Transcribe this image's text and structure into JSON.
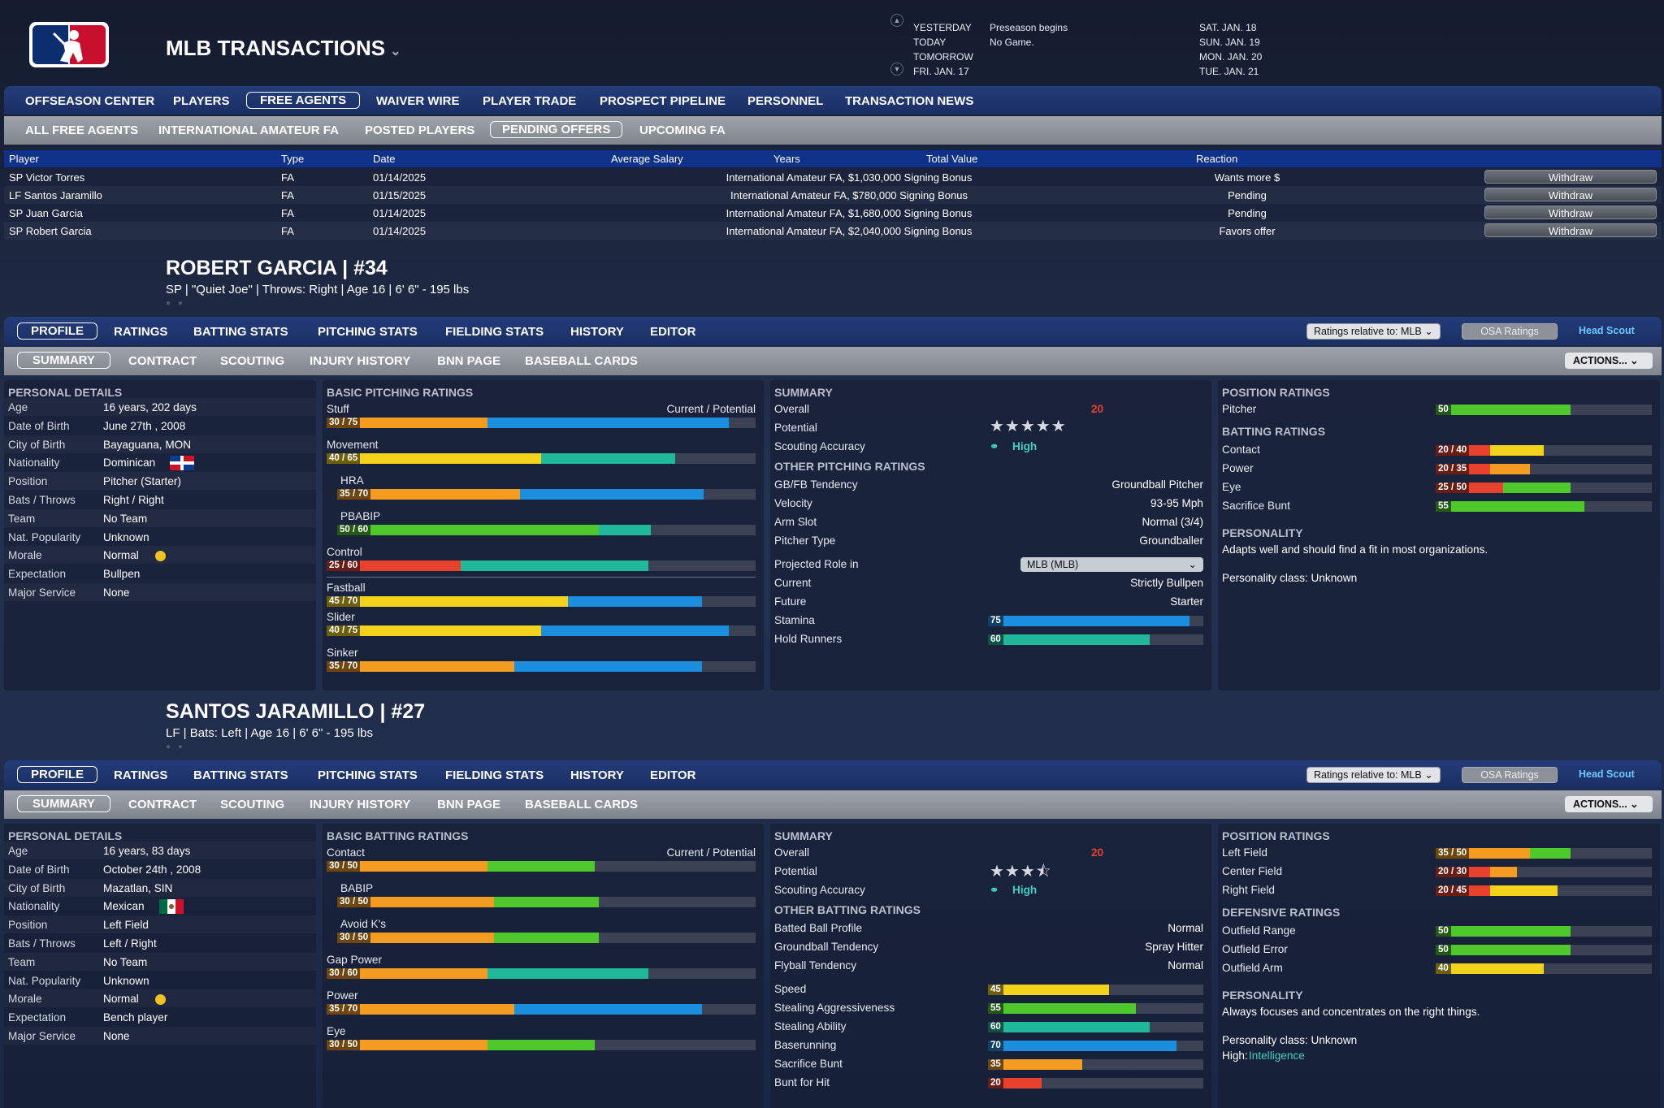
{
  "app": {
    "title": "MLB TRANSACTIONS"
  },
  "calendar": {
    "rows": [
      {
        "label": "YESTERDAY",
        "event": "Preseason begins",
        "date": "SAT. JAN. 18"
      },
      {
        "label": "TODAY",
        "event": "No Game.",
        "date": "SUN. JAN. 19"
      },
      {
        "label": "TOMORROW",
        "event": "",
        "date": "MON. JAN. 20"
      },
      {
        "label": "FRI. JAN. 17",
        "event": "",
        "date": "TUE. JAN. 21"
      }
    ]
  },
  "nav": [
    "OFFSEASON CENTER",
    "PLAYERS",
    "FREE AGENTS",
    "WAIVER WIRE",
    "PLAYER TRADE",
    "PROSPECT PIPELINE",
    "PERSONNEL",
    "TRANSACTION NEWS"
  ],
  "subnav": [
    "ALL FREE AGENTS",
    "INTERNATIONAL AMATEUR FA",
    "POSTED PLAYERS",
    "PENDING OFFERS",
    "UPCOMING FA"
  ],
  "offers": {
    "headers": [
      "Player",
      "Type",
      "Date",
      "Average Salary",
      "Years",
      "Total Value",
      "Reaction"
    ],
    "rows": [
      {
        "player": "SP Victor Torres",
        "type": "FA",
        "date": "01/14/2025",
        "value": "International Amateur FA, $1,030,000 Signing Bonus",
        "reaction": "Wants more $",
        "action": "Withdraw"
      },
      {
        "player": "LF Santos Jaramillo",
        "type": "FA",
        "date": "01/15/2025",
        "value": "International Amateur FA, $780,000 Signing Bonus",
        "reaction": "Pending",
        "action": "Withdraw"
      },
      {
        "player": "SP Juan Garcia",
        "type": "FA",
        "date": "01/14/2025",
        "value": "International Amateur FA, $1,680,000 Signing Bonus",
        "reaction": "Pending",
        "action": "Withdraw"
      },
      {
        "player": "SP Robert Garcia",
        "type": "FA",
        "date": "01/14/2025",
        "value": "International Amateur FA, $2,040,000 Signing Bonus",
        "reaction": "Favors offer",
        "action": "Withdraw"
      }
    ]
  },
  "player_tabs": [
    "PROFILE",
    "RATINGS",
    "BATTING STATS",
    "PITCHING STATS",
    "FIELDING STATS",
    "HISTORY",
    "EDITOR"
  ],
  "player_subtabs": [
    "SUMMARY",
    "CONTRACT",
    "SCOUTING",
    "INJURY HISTORY",
    "BNN PAGE",
    "BASEBALL CARDS"
  ],
  "ratings_relative": "Ratings relative to: MLB",
  "osa_label": "OSA Ratings",
  "scout_label": "Head Scout",
  "actions_label": "ACTIONS...",
  "headings": {
    "personal": "PERSONAL DETAILS",
    "basic_pitching": "BASIC PITCHING RATINGS",
    "basic_batting": "BASIC BATTING RATINGS",
    "summary": "SUMMARY",
    "other_pitching": "OTHER PITCHING RATINGS",
    "other_batting": "OTHER BATTING RATINGS",
    "position": "POSITION RATINGS",
    "batting": "BATTING RATINGS",
    "defensive": "DEFENSIVE RATINGS",
    "personality": "PERSONALITY",
    "cur_pot": "Current / Potential",
    "overall": "Overall",
    "potential": "Potential",
    "scouting_accuracy": "Scouting Accuracy"
  },
  "detail_labels": [
    "Age",
    "Date of Birth",
    "City of Birth",
    "Nationality",
    "Position",
    "Bats / Throws",
    "Team",
    "Nat. Popularity",
    "Morale",
    "Expectation",
    "Major Service"
  ],
  "colors": {
    "red": "#e8422f",
    "orange": "#f39c1f",
    "yellow": "#f2d21b",
    "green": "#4ec82a",
    "teal": "#1fb89a",
    "blue": "#1c8ee0",
    "empty": "#3a4254"
  },
  "p1": {
    "name": "ROBERT GARCIA  |  #34",
    "sub": "SP | \"Quiet Joe\" | Throws: Right  |  Age 16  |  6' 6\" - 195 lbs",
    "details": [
      "16 years, 202 days",
      "June 27th , 2008",
      "Bayaguana, MON",
      "Dominican",
      "Pitcher (Starter)",
      "Right / Right",
      "No Team",
      "Unknown",
      "Normal",
      "Bullpen",
      "None"
    ],
    "flag": "dominican-flag",
    "basic": [
      {
        "label": "Stuff",
        "cur": 30,
        "pot": 75,
        "text": "30 / 75"
      },
      {
        "label": "Movement",
        "cur": 40,
        "pot": 65,
        "text": "40 / 65"
      },
      {
        "label": "HRA",
        "cur": 35,
        "pot": 70,
        "text": "35 / 70",
        "indent": true
      },
      {
        "label": "PBABIP",
        "cur": 50,
        "pot": 60,
        "text": "50 / 60",
        "indent": true
      },
      {
        "label": "Control",
        "cur": 25,
        "pot": 60,
        "text": "25 / 60"
      },
      {
        "label": "Fastball",
        "cur": 45,
        "pot": 70,
        "text": "45 / 70",
        "sep": true
      },
      {
        "label": "Slider",
        "cur": 40,
        "pot": 75,
        "text": "40 / 75"
      },
      {
        "label": "Sinker",
        "cur": 35,
        "pot": 70,
        "text": "35 / 70"
      }
    ],
    "overall": "20",
    "stars": 5,
    "accuracy": "High",
    "other": [
      {
        "label": "GB/FB Tendency",
        "value": "Groundball Pitcher"
      },
      {
        "label": "Velocity",
        "value": "93-95 Mph"
      },
      {
        "label": "Arm Slot",
        "value": "Normal (3/4)"
      },
      {
        "label": "Pitcher Type",
        "value": "Groundballer"
      }
    ],
    "projected_role_label": "Projected Role in",
    "projected_role": "MLB (MLB)",
    "roles": [
      {
        "label": "Current",
        "value": "Strictly Bullpen"
      },
      {
        "label": "Future",
        "value": "Starter"
      }
    ],
    "small_bars": [
      {
        "label": "Stamina",
        "v": 75
      },
      {
        "label": "Hold Runners",
        "v": 60
      }
    ],
    "position": [
      {
        "label": "Pitcher",
        "cur": 50,
        "pot": 50,
        "text": "50"
      }
    ],
    "batting": [
      {
        "label": "Contact",
        "cur": 20,
        "pot": 40,
        "text": "20 / 40"
      },
      {
        "label": "Power",
        "cur": 20,
        "pot": 35,
        "text": "20 / 35"
      },
      {
        "label": "Eye",
        "cur": 25,
        "pot": 50,
        "text": "25 / 50"
      },
      {
        "label": "Sacrifice Bunt",
        "cur": 55,
        "pot": 55,
        "text": "55"
      }
    ],
    "personality": "Adapts well and should find a fit in most organizations.",
    "personality_class": "Personality class: Unknown"
  },
  "p2": {
    "name": "SANTOS JARAMILLO  |  #27",
    "sub": "LF | Bats: Left  |  Age 16  |  6' 6\" - 195 lbs",
    "details": [
      "16 years, 83 days",
      "October 24th , 2008",
      "Mazatlan, SIN",
      "Mexican",
      "Left Field",
      "Left / Right",
      "No Team",
      "Unknown",
      "Normal",
      "Bench player",
      "None"
    ],
    "flag": "mexican-flag",
    "basic": [
      {
        "label": "Contact",
        "cur": 30,
        "pot": 50,
        "text": "30 / 50"
      },
      {
        "label": "BABIP",
        "cur": 30,
        "pot": 50,
        "text": "30 / 50",
        "indent": true
      },
      {
        "label": "Avoid K's",
        "cur": 30,
        "pot": 50,
        "text": "30 / 50",
        "indent": true
      },
      {
        "label": "Gap Power",
        "cur": 30,
        "pot": 60,
        "text": "30 / 60"
      },
      {
        "label": "Power",
        "cur": 35,
        "pot": 70,
        "text": "35 / 70"
      },
      {
        "label": "Eye",
        "cur": 30,
        "pot": 50,
        "text": "30 / 50"
      }
    ],
    "overall": "20",
    "stars": 3.5,
    "accuracy": "High",
    "other": [
      {
        "label": "Batted Ball Profile",
        "value": "Normal"
      },
      {
        "label": "Groundball Tendency",
        "value": "Spray Hitter"
      },
      {
        "label": "Flyball Tendency",
        "value": "Normal"
      }
    ],
    "small_bars": [
      {
        "label": "Speed",
        "v": 45
      },
      {
        "label": "Stealing Aggressiveness",
        "v": 55
      },
      {
        "label": "Stealing Ability",
        "v": 60
      },
      {
        "label": "Baserunning",
        "v": 70
      },
      {
        "label": "Sacrifice Bunt",
        "v": 35
      },
      {
        "label": "Bunt for Hit",
        "v": 20
      }
    ],
    "position": [
      {
        "label": "Left Field",
        "cur": 35,
        "pot": 50,
        "text": "35 / 50"
      },
      {
        "label": "Center Field",
        "cur": 20,
        "pot": 30,
        "text": "20 / 30"
      },
      {
        "label": "Right Field",
        "cur": 20,
        "pot": 45,
        "text": "20 / 45"
      }
    ],
    "defensive": [
      {
        "label": "Outfield Range",
        "cur": 50,
        "pot": 50,
        "text": "50"
      },
      {
        "label": "Outfield Error",
        "cur": 50,
        "pot": 50,
        "text": "50"
      },
      {
        "label": "Outfield Arm",
        "cur": 40,
        "pot": 40,
        "text": "40"
      }
    ],
    "personality": "Always focuses and concentrates on the right things.",
    "personality_class": "Personality class: Unknown",
    "high_label": "High:",
    "high_value": "Intelligence"
  }
}
